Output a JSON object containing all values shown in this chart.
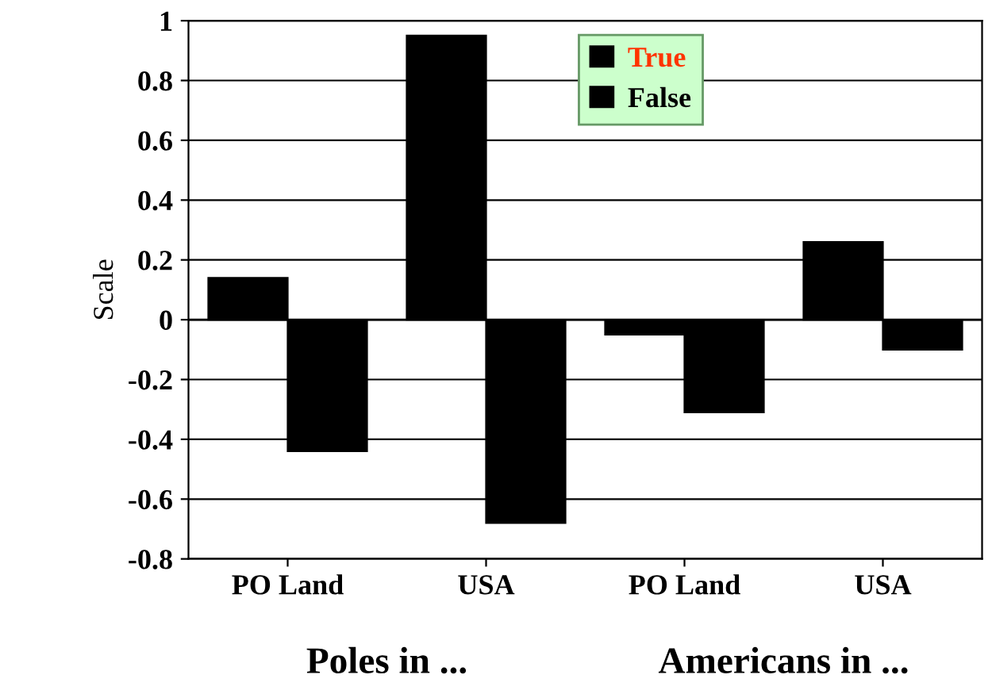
{
  "chart_data": {
    "type": "bar",
    "ylabel": "Scale",
    "categories": [
      "PO Land",
      "USA",
      "PO Land",
      "USA"
    ],
    "series": [
      {
        "name": "True",
        "color": "#000000",
        "values": [
          0.14,
          0.95,
          -0.05,
          0.26
        ]
      },
      {
        "name": "False",
        "color": "#000000",
        "values": [
          -0.44,
          -0.68,
          -0.31,
          -0.1
        ]
      }
    ],
    "annotations": [
      "Poles in ...",
      "Americans in ..."
    ],
    "ylim": [
      -0.8,
      1
    ],
    "yticks": [
      -0.8,
      -0.6,
      -0.4,
      -0.2,
      0,
      0.2,
      0.4,
      0.6,
      0.8,
      1
    ],
    "grid": "y",
    "legend": "top"
  }
}
